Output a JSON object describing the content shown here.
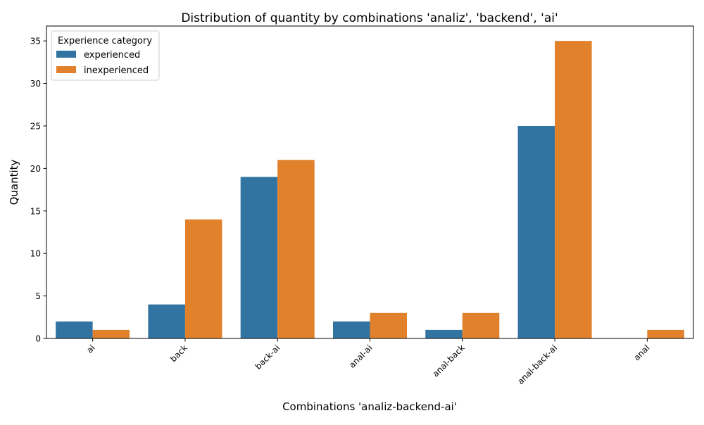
{
  "chart_data": {
    "type": "bar",
    "title": "Distribution of quantity by combinations 'analiz', 'backend', 'ai'",
    "xlabel": "Combinations 'analiz-backend-ai'",
    "ylabel": "Quantity",
    "categories": [
      "ai",
      "back",
      "back-ai",
      "anal-ai",
      "anal-back",
      "anal-back-ai",
      "anal"
    ],
    "series": [
      {
        "name": "experienced",
        "color": "#3274a1",
        "values": [
          2,
          4,
          19,
          2,
          1,
          25,
          0
        ]
      },
      {
        "name": "inexperienced",
        "color": "#e1812c",
        "values": [
          1,
          14,
          21,
          3,
          3,
          35,
          1
        ]
      }
    ],
    "ylim": [
      0,
      36.75
    ],
    "yticks": [
      0,
      5,
      10,
      15,
      20,
      25,
      30,
      35
    ],
    "grid": false,
    "legend": {
      "title": "Experience category",
      "position": "top-left"
    }
  }
}
